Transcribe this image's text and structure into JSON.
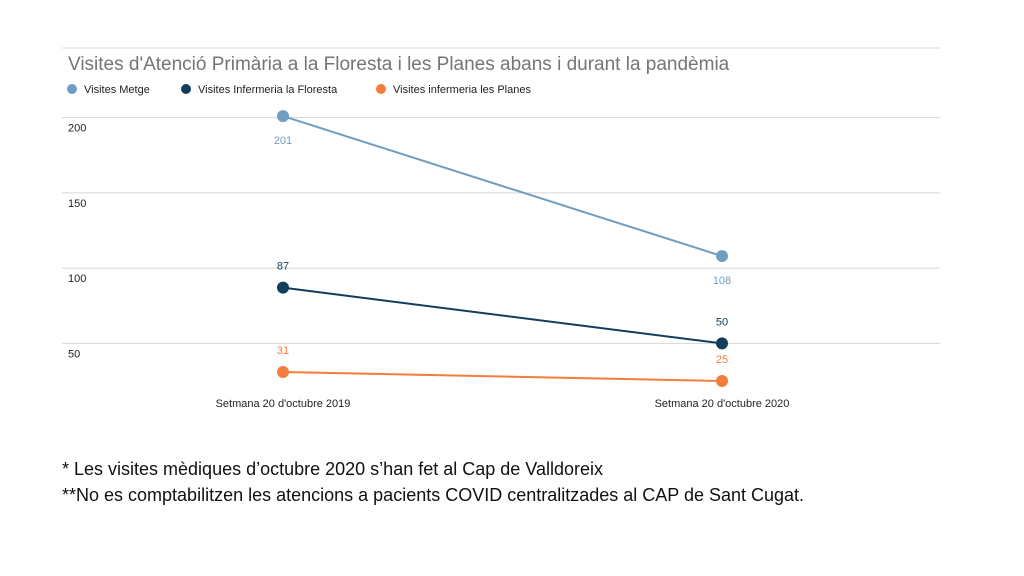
{
  "chart_data": {
    "type": "line",
    "title": "Visites d'Atenció Primària a la Floresta i les Planes abans i durant la pandèmia",
    "categories": [
      "Setmana 20 d'octubre 2019",
      "Setmana 20 d'octubre 2020"
    ],
    "y_ticks": [
      50,
      100,
      150,
      200
    ],
    "ylim": [
      25,
      215
    ],
    "grid": true,
    "legend_position": "top-left",
    "series": [
      {
        "name": "Visites Metge",
        "values": [
          201,
          108
        ],
        "labels": [
          "201",
          "108"
        ],
        "color": "#6f9ec0",
        "label_position": "below"
      },
      {
        "name": "Visites Infermeria la Floresta",
        "values": [
          87,
          50
        ],
        "labels": [
          "87",
          "50"
        ],
        "color": "#123d5c",
        "label_position": "above"
      },
      {
        "name": "Visites infermeria les Planes",
        "values": [
          31,
          25
        ],
        "labels": [
          "31",
          "25"
        ],
        "color": "#f47c3c",
        "label_position": "above"
      }
    ]
  },
  "notes": [
    "* Les visites mèdiques d’octubre 2020 s’han fet al Cap de Valldoreix",
    "**No es comptabilitzen les atencions a pacients COVID centralitzades al CAP de Sant Cugat."
  ]
}
